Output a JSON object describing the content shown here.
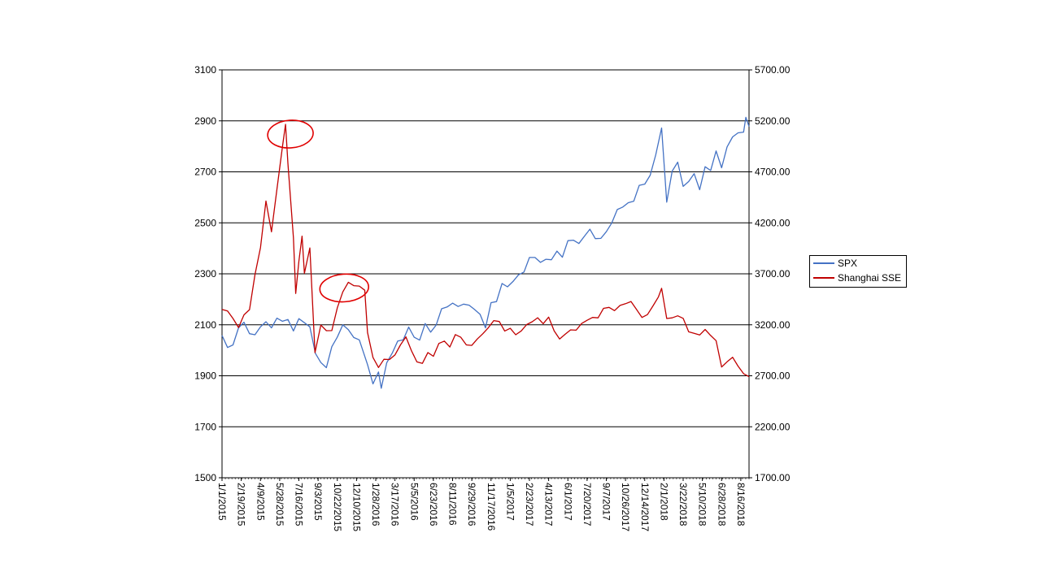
{
  "colors": {
    "spx": "#4472C4",
    "sse": "#C00000",
    "grid": "#000000",
    "annotation": "#E00000"
  },
  "chart_data": {
    "type": "line",
    "title": "",
    "xlabel": "",
    "ylabel": "",
    "grid": "horizontal",
    "legend_position": "right",
    "x_tick_labels": [
      "1/1/2015",
      "2/19/2015",
      "4/9/2015",
      "5/28/2015",
      "7/16/2015",
      "9/3/2015",
      "10/22/2015",
      "12/10/2015",
      "1/28/2016",
      "3/17/2016",
      "5/5/2016",
      "6/23/2016",
      "8/11/2016",
      "9/29/2016",
      "11/17/2016",
      "1/5/2017",
      "2/23/2017",
      "4/13/2017",
      "6/1/2017",
      "7/20/2017",
      "9/7/2017",
      "10/26/2017",
      "12/14/2017",
      "2/1/2018",
      "3/22/2018",
      "5/10/2018",
      "6/28/2018",
      "8/16/2018"
    ],
    "y_left": {
      "ticks": [
        "1500",
        "1700",
        "1900",
        "2100",
        "2300",
        "2500",
        "2700",
        "2900",
        "3100"
      ],
      "range": [
        1500,
        3100
      ]
    },
    "y_right": {
      "ticks": [
        "1700.00",
        "2200.00",
        "2700.00",
        "3200.00",
        "3700.00",
        "4200.00",
        "4700.00",
        "5200.00",
        "5700.00"
      ],
      "range": [
        1700,
        5700
      ]
    },
    "series": [
      {
        "name": "SPX",
        "axis": "left",
        "color_key": "spx",
        "values": [
          [
            "1/1/2015",
            2058
          ],
          [
            "1/15/2015",
            2011
          ],
          [
            "1/29/2015",
            2021
          ],
          [
            "2/12/2015",
            2088
          ],
          [
            "2/26/2015",
            2110
          ],
          [
            "3/12/2015",
            2065
          ],
          [
            "3/26/2015",
            2061
          ],
          [
            "4/9/2015",
            2092
          ],
          [
            "4/23/2015",
            2112
          ],
          [
            "5/7/2015",
            2088
          ],
          [
            "5/21/2015",
            2126
          ],
          [
            "6/4/2015",
            2114
          ],
          [
            "6/18/2015",
            2121
          ],
          [
            "7/2/2015",
            2076
          ],
          [
            "7/16/2015",
            2124
          ],
          [
            "7/30/2015",
            2108
          ],
          [
            "8/13/2015",
            2092
          ],
          [
            "8/27/2015",
            1988
          ],
          [
            "9/10/2015",
            1952
          ],
          [
            "9/24/2015",
            1932
          ],
          [
            "10/8/2015",
            2014
          ],
          [
            "10/22/2015",
            2052
          ],
          [
            "11/5/2015",
            2100
          ],
          [
            "11/19/2015",
            2081
          ],
          [
            "12/3/2015",
            2050
          ],
          [
            "12/17/2015",
            2041
          ],
          [
            "1/7/2016",
            1944
          ],
          [
            "1/21/2016",
            1868
          ],
          [
            "2/4/2016",
            1915
          ],
          [
            "2/11/2016",
            1851
          ],
          [
            "2/25/2016",
            1951
          ],
          [
            "3/10/2016",
            1989
          ],
          [
            "3/24/2016",
            2036
          ],
          [
            "4/7/2016",
            2041
          ],
          [
            "4/21/2016",
            2091
          ],
          [
            "5/5/2016",
            2051
          ],
          [
            "5/19/2016",
            2040
          ],
          [
            "6/2/2016",
            2105
          ],
          [
            "6/16/2016",
            2071
          ],
          [
            "6/30/2016",
            2099
          ],
          [
            "7/14/2016",
            2163
          ],
          [
            "7/28/2016",
            2170
          ],
          [
            "8/11/2016",
            2185
          ],
          [
            "8/25/2016",
            2172
          ],
          [
            "9/8/2016",
            2181
          ],
          [
            "9/22/2016",
            2177
          ],
          [
            "10/6/2016",
            2160
          ],
          [
            "10/20/2016",
            2141
          ],
          [
            "11/3/2016",
            2088
          ],
          [
            "11/17/2016",
            2187
          ],
          [
            "12/1/2016",
            2191
          ],
          [
            "12/15/2016",
            2262
          ],
          [
            "12/29/2016",
            2249
          ],
          [
            "1/12/2017",
            2270
          ],
          [
            "1/26/2017",
            2296
          ],
          [
            "2/9/2017",
            2307
          ],
          [
            "2/23/2017",
            2364
          ],
          [
            "3/9/2017",
            2364
          ],
          [
            "3/23/2017",
            2345
          ],
          [
            "4/6/2017",
            2357
          ],
          [
            "4/20/2017",
            2355
          ],
          [
            "5/4/2017",
            2389
          ],
          [
            "5/18/2017",
            2365
          ],
          [
            "6/1/2017",
            2430
          ],
          [
            "6/15/2017",
            2432
          ],
          [
            "6/29/2017",
            2419
          ],
          [
            "7/13/2017",
            2447
          ],
          [
            "7/27/2017",
            2475
          ],
          [
            "8/10/2017",
            2438
          ],
          [
            "8/24/2017",
            2439
          ],
          [
            "9/7/2017",
            2465
          ],
          [
            "9/21/2017",
            2500
          ],
          [
            "10/5/2017",
            2552
          ],
          [
            "10/19/2017",
            2562
          ],
          [
            "11/2/2017",
            2579
          ],
          [
            "11/16/2017",
            2585
          ],
          [
            "11/30/2017",
            2647
          ],
          [
            "12/14/2017",
            2652
          ],
          [
            "12/28/2017",
            2687
          ],
          [
            "1/11/2018",
            2767
          ],
          [
            "1/26/2018",
            2872
          ],
          [
            "2/8/2018",
            2581
          ],
          [
            "2/22/2018",
            2703
          ],
          [
            "3/8/2018",
            2738
          ],
          [
            "3/22/2018",
            2643
          ],
          [
            "4/5/2018",
            2662
          ],
          [
            "4/19/2018",
            2693
          ],
          [
            "5/3/2018",
            2630
          ],
          [
            "5/17/2018",
            2720
          ],
          [
            "5/31/2018",
            2705
          ],
          [
            "6/14/2018",
            2782
          ],
          [
            "6/28/2018",
            2716
          ],
          [
            "7/12/2018",
            2798
          ],
          [
            "7/26/2018",
            2837
          ],
          [
            "8/9/2018",
            2853
          ],
          [
            "8/23/2018",
            2856
          ],
          [
            "8/29/2018",
            2914
          ],
          [
            "9/6/2018",
            2878
          ]
        ]
      },
      {
        "name": "Shanghai SSE",
        "axis": "right",
        "color_key": "sse",
        "values": [
          [
            "1/1/2015",
            3350
          ],
          [
            "1/15/2015",
            3336
          ],
          [
            "1/29/2015",
            3262
          ],
          [
            "2/12/2015",
            3173
          ],
          [
            "2/26/2015",
            3298
          ],
          [
            "3/12/2015",
            3349
          ],
          [
            "3/26/2015",
            3691
          ],
          [
            "4/9/2015",
            3957
          ],
          [
            "4/23/2015",
            4414
          ],
          [
            "5/7/2015",
            4112
          ],
          [
            "5/21/2015",
            4529
          ],
          [
            "6/4/2015",
            4947
          ],
          [
            "6/12/2015",
            5166
          ],
          [
            "6/18/2015",
            4785
          ],
          [
            "7/2/2015",
            4053
          ],
          [
            "7/8/2015",
            3507
          ],
          [
            "7/16/2015",
            3823
          ],
          [
            "7/24/2015",
            4070
          ],
          [
            "7/30/2015",
            3705
          ],
          [
            "8/13/2015",
            3954
          ],
          [
            "8/26/2015",
            2927
          ],
          [
            "9/10/2015",
            3197
          ],
          [
            "9/24/2015",
            3142
          ],
          [
            "10/8/2015",
            3143
          ],
          [
            "10/22/2015",
            3368
          ],
          [
            "11/5/2015",
            3522
          ],
          [
            "11/19/2015",
            3617
          ],
          [
            "12/3/2015",
            3584
          ],
          [
            "12/17/2015",
            3580
          ],
          [
            "12/31/2015",
            3539
          ],
          [
            "1/7/2016",
            3125
          ],
          [
            "1/21/2016",
            2880
          ],
          [
            "2/4/2016",
            2781
          ],
          [
            "2/18/2016",
            2862
          ],
          [
            "3/3/2016",
            2859
          ],
          [
            "3/17/2016",
            2904
          ],
          [
            "3/31/2016",
            3003
          ],
          [
            "4/14/2016",
            3082
          ],
          [
            "4/28/2016",
            2946
          ],
          [
            "5/12/2016",
            2836
          ],
          [
            "5/26/2016",
            2822
          ],
          [
            "6/9/2016",
            2928
          ],
          [
            "6/23/2016",
            2891
          ],
          [
            "7/7/2016",
            3017
          ],
          [
            "7/21/2016",
            3040
          ],
          [
            "8/4/2016",
            2982
          ],
          [
            "8/18/2016",
            3104
          ],
          [
            "9/1/2016",
            3078
          ],
          [
            "9/15/2016",
            3003
          ],
          [
            "9/29/2016",
            2998
          ],
          [
            "10/13/2016",
            3061
          ],
          [
            "10/27/2016",
            3112
          ],
          [
            "11/10/2016",
            3171
          ],
          [
            "11/24/2016",
            3241
          ],
          [
            "12/8/2016",
            3232
          ],
          [
            "12/22/2016",
            3139
          ],
          [
            "1/5/2017",
            3165
          ],
          [
            "1/19/2017",
            3102
          ],
          [
            "2/2/2017",
            3140
          ],
          [
            "2/16/2017",
            3202
          ],
          [
            "3/2/2017",
            3230
          ],
          [
            "3/16/2017",
            3269
          ],
          [
            "3/30/2017",
            3211
          ],
          [
            "4/13/2017",
            3275
          ],
          [
            "4/27/2017",
            3140
          ],
          [
            "5/11/2017",
            3061
          ],
          [
            "5/25/2017",
            3107
          ],
          [
            "6/8/2017",
            3150
          ],
          [
            "6/22/2017",
            3147
          ],
          [
            "7/6/2017",
            3212
          ],
          [
            "7/20/2017",
            3244
          ],
          [
            "8/3/2017",
            3272
          ],
          [
            "8/17/2017",
            3268
          ],
          [
            "8/31/2017",
            3361
          ],
          [
            "9/14/2017",
            3371
          ],
          [
            "9/28/2017",
            3339
          ],
          [
            "10/12/2017",
            3390
          ],
          [
            "10/26/2017",
            3407
          ],
          [
            "11/9/2017",
            3428
          ],
          [
            "11/23/2017",
            3351
          ],
          [
            "12/7/2017",
            3272
          ],
          [
            "12/21/2017",
            3300
          ],
          [
            "1/4/2018",
            3385
          ],
          [
            "1/18/2018",
            3474
          ],
          [
            "1/26/2018",
            3558
          ],
          [
            "2/8/2018",
            3262
          ],
          [
            "2/22/2018",
            3268
          ],
          [
            "3/8/2018",
            3288
          ],
          [
            "3/22/2018",
            3263
          ],
          [
            "4/5/2018",
            3131
          ],
          [
            "4/19/2018",
            3117
          ],
          [
            "5/3/2018",
            3100
          ],
          [
            "5/17/2018",
            3154
          ],
          [
            "5/31/2018",
            3095
          ],
          [
            "6/14/2018",
            3044
          ],
          [
            "6/28/2018",
            2786
          ],
          [
            "7/12/2018",
            2837
          ],
          [
            "7/26/2018",
            2882
          ],
          [
            "8/9/2018",
            2795
          ],
          [
            "8/23/2018",
            2721
          ],
          [
            "9/6/2018",
            2691
          ]
        ]
      }
    ],
    "annotations": [
      {
        "type": "circle",
        "target": "Shanghai SSE",
        "label": ""
      },
      {
        "type": "circle",
        "target": "Shanghai SSE",
        "label": ""
      }
    ]
  }
}
